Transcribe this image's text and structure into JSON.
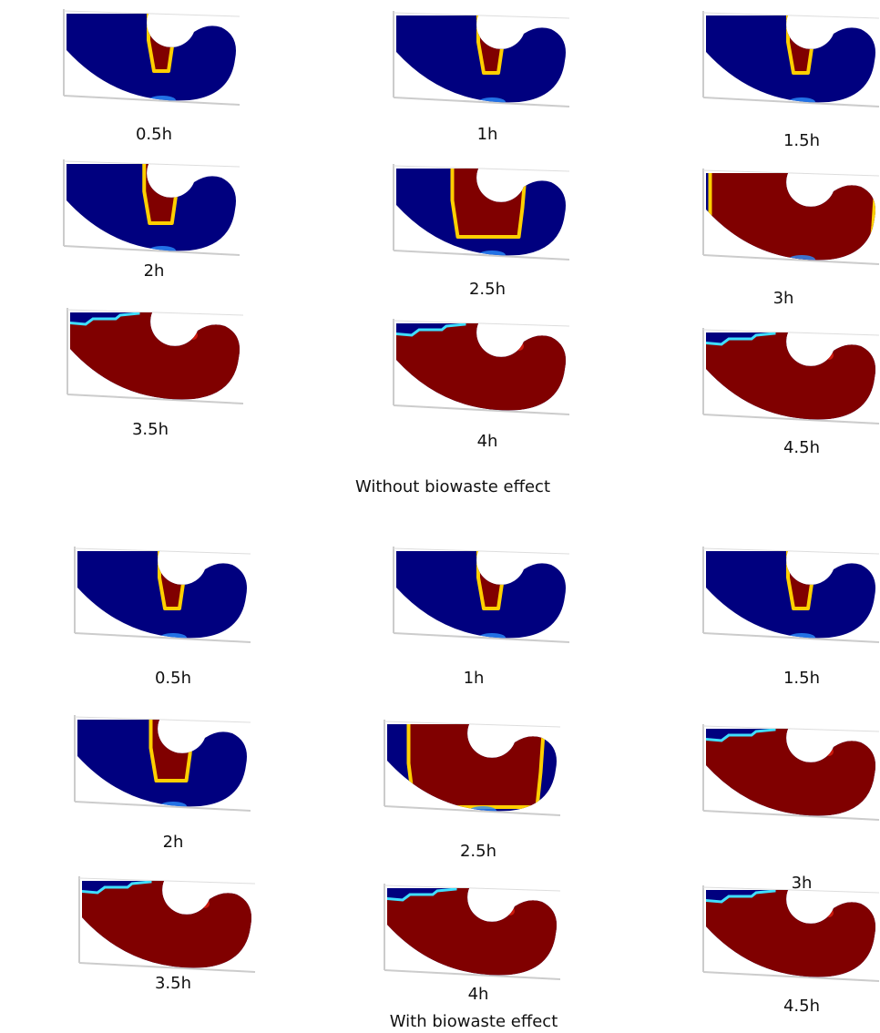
{
  "panels": [
    {
      "caption": "Without biowaste effect",
      "images": [
        {
          "label": "0.5h"
        },
        {
          "label": "1h"
        },
        {
          "label": "1.5h"
        },
        {
          "label": "2h"
        },
        {
          "label": "2.5h"
        },
        {
          "label": "3h"
        },
        {
          "label": "3.5h"
        },
        {
          "label": "4h"
        },
        {
          "label": "4.5h"
        }
      ]
    },
    {
      "caption": "With biowaste effect",
      "images": [
        {
          "label": "0.5h"
        },
        {
          "label": "1h"
        },
        {
          "label": "1.5h"
        },
        {
          "label": "2h"
        },
        {
          "label": "2.5h"
        },
        {
          "label": "3h"
        },
        {
          "label": "3.5h"
        },
        {
          "label": "4h"
        },
        {
          "label": "4.5h"
        }
      ]
    }
  ]
}
